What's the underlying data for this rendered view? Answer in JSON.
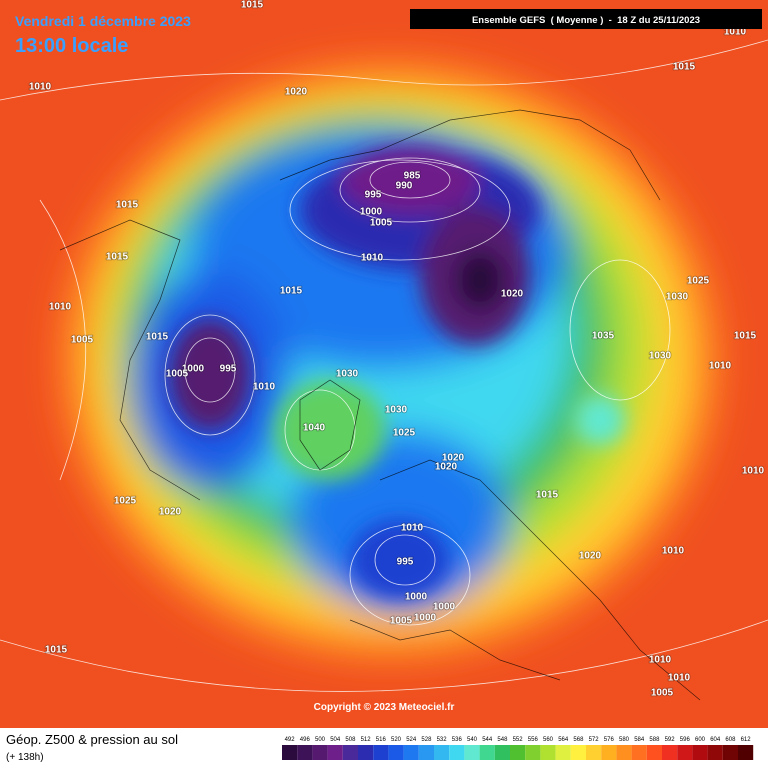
{
  "header": {
    "date": "Vendredi 1 décembre 2023",
    "time": "13:00 locale",
    "model": "Ensemble GEFS  ( Moyenne )  -  18 Z du 25/11/2023"
  },
  "pressure_labels": [
    "1015",
    "1010",
    "1015",
    "1010",
    "1020",
    "985",
    "990",
    "995",
    "1000",
    "1005",
    "1015",
    "1015",
    "1010",
    "1025",
    "1030",
    "1020",
    "1015",
    "1010",
    "1005",
    "1015",
    "1035",
    "1015",
    "1010",
    "1030",
    "1000",
    "1005",
    "995",
    "1010",
    "1030",
    "1030",
    "1025",
    "1040",
    "1020",
    "1020",
    "1015",
    "1025",
    "1020",
    "1010",
    "995",
    "1020",
    "1010",
    "1010",
    "1000",
    "1000",
    "1000",
    "1005",
    "1015",
    "1010",
    "1010",
    "1005"
  ],
  "copyright": "Copyright © 2023 Meteociel.fr",
  "legend": {
    "title": "Géop. Z500 & pression au sol",
    "lead_time": "(+ 138h)",
    "values": [
      492,
      496,
      500,
      504,
      508,
      512,
      516,
      520,
      524,
      528,
      532,
      536,
      540,
      544,
      548,
      552,
      556,
      560,
      564,
      568,
      572,
      576,
      580,
      584,
      588,
      592,
      596,
      600,
      604,
      608,
      612
    ],
    "colors": [
      "#2b0a3d",
      "#3e1256",
      "#551a70",
      "#6e1f8a",
      "#4a2a9a",
      "#2c2cb0",
      "#1e40d0",
      "#1a5ae6",
      "#1e78f0",
      "#2898f0",
      "#34b8f0",
      "#40d8f0",
      "#60e8d0",
      "#40d890",
      "#30c060",
      "#50c030",
      "#80d030",
      "#b0e030",
      "#e0f040",
      "#fff040",
      "#ffd030",
      "#ffb020",
      "#ff9020",
      "#ff7020",
      "#ff5020",
      "#f03020",
      "#d01818",
      "#b00c10",
      "#900808",
      "#700404",
      "#500000"
    ]
  }
}
